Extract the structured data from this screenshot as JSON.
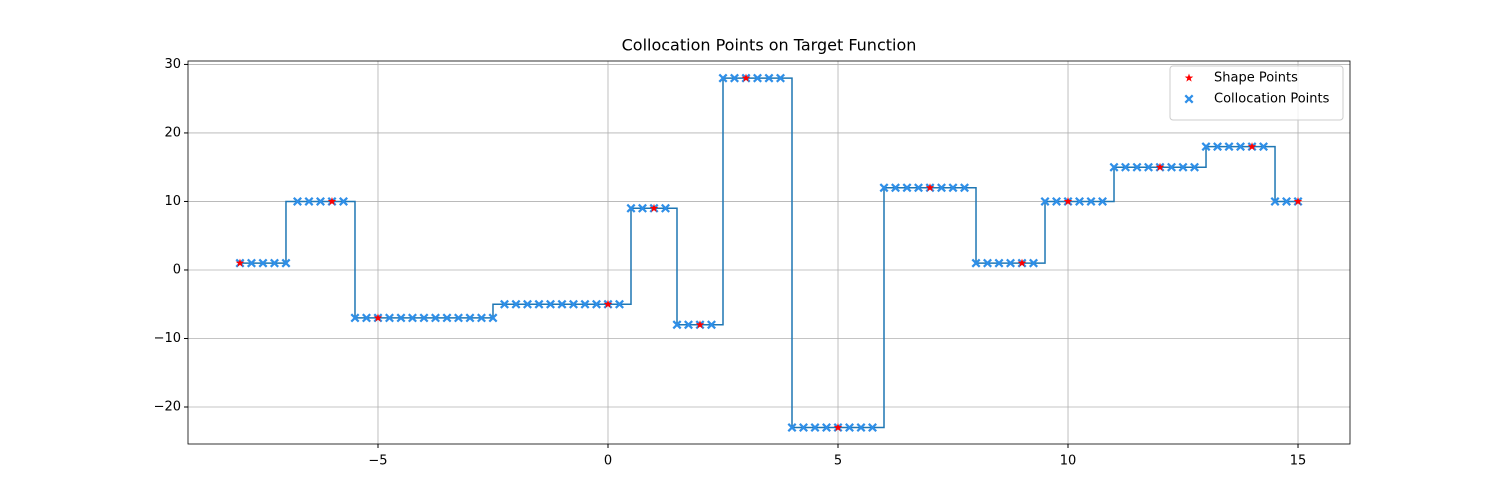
{
  "chart_data": {
    "type": "scatter",
    "title": "Collocation Points on Target Function",
    "xlim": [
      -9.13,
      16.13
    ],
    "ylim": [
      -25.4,
      30.5
    ],
    "xticks": [
      {
        "value": -5,
        "label": "−5"
      },
      0,
      5,
      10,
      15
    ],
    "yticks": [
      {
        "value": -20,
        "label": "−20"
      },
      {
        "value": -10,
        "label": "−10"
      },
      0,
      10,
      20,
      30
    ],
    "grid": true,
    "legend": "upper right",
    "series": [
      {
        "kind": "line",
        "color": "#1f77b4",
        "x": [
          -8,
          -7,
          -7,
          -5.5,
          -5.5,
          -2.5,
          -2.5,
          0.5,
          0.5,
          1.5,
          1.5,
          2.5,
          2.5,
          4,
          4,
          6,
          6,
          8,
          8,
          9.5,
          9.5,
          11,
          11,
          13,
          13,
          14.5,
          14.5,
          15
        ],
        "values": [
          1,
          1,
          10,
          10,
          -7,
          -7,
          -5,
          -5,
          9,
          9,
          -8,
          -8,
          28,
          28,
          -23,
          -23,
          12,
          12,
          1,
          1,
          10,
          10,
          15,
          15,
          18,
          18,
          10,
          10
        ]
      },
      {
        "kind": "cross",
        "name": "Collocation Points",
        "color": "#2f8fe8",
        "x": [
          -8,
          -7.75,
          -7.5,
          -7.25,
          -7,
          -6.75,
          -6.5,
          -6.25,
          -6,
          -5.75,
          -5.5,
          -5.25,
          -5,
          -4.75,
          -4.5,
          -4.25,
          -4,
          -3.75,
          -3.5,
          -3.25,
          -3,
          -2.75,
          -2.5,
          -2.25,
          -2,
          -1.75,
          -1.5,
          -1.25,
          -1,
          -0.75,
          -0.5,
          -0.25,
          0,
          0.25,
          0.5,
          0.75,
          1,
          1.25,
          1.5,
          1.75,
          2,
          2.25,
          2.5,
          2.75,
          3,
          3.25,
          3.5,
          3.75,
          4,
          4.25,
          4.5,
          4.75,
          5,
          5.25,
          5.5,
          5.75,
          6,
          6.25,
          6.5,
          6.75,
          7,
          7.25,
          7.5,
          7.75,
          8,
          8.25,
          8.5,
          8.75,
          9,
          9.25,
          9.5,
          9.75,
          10,
          10.25,
          10.5,
          10.75,
          11,
          11.25,
          11.5,
          11.75,
          12,
          12.25,
          12.5,
          12.75,
          13,
          13.25,
          13.5,
          13.75,
          14,
          14.25,
          14.5,
          14.75,
          15
        ],
        "values": [
          1,
          1,
          1,
          1,
          1,
          10,
          10,
          10,
          10,
          10,
          -7,
          -7,
          -7,
          -7,
          -7,
          -7,
          -7,
          -7,
          -7,
          -7,
          -7,
          -7,
          -7,
          -5,
          -5,
          -5,
          -5,
          -5,
          -5,
          -5,
          -5,
          -5,
          -5,
          -5,
          9,
          9,
          9,
          9,
          -8,
          -8,
          -8,
          -8,
          28,
          28,
          28,
          28,
          28,
          28,
          -23,
          -23,
          -23,
          -23,
          -23,
          -23,
          -23,
          -23,
          12,
          12,
          12,
          12,
          12,
          12,
          12,
          12,
          1,
          1,
          1,
          1,
          1,
          1,
          10,
          10,
          10,
          10,
          10,
          10,
          15,
          15,
          15,
          15,
          15,
          15,
          15,
          15,
          18,
          18,
          18,
          18,
          18,
          18,
          10,
          10,
          10
        ]
      },
      {
        "kind": "star",
        "name": "Shape Points",
        "color": "#ff0000",
        "x": [
          -8,
          -6,
          -5,
          0,
          1,
          2,
          3,
          5,
          7,
          9,
          10,
          12,
          14,
          15
        ],
        "values": [
          1,
          10,
          -7,
          -5,
          9,
          -8,
          28,
          -23,
          12,
          1,
          10,
          15,
          18,
          10
        ]
      }
    ]
  }
}
